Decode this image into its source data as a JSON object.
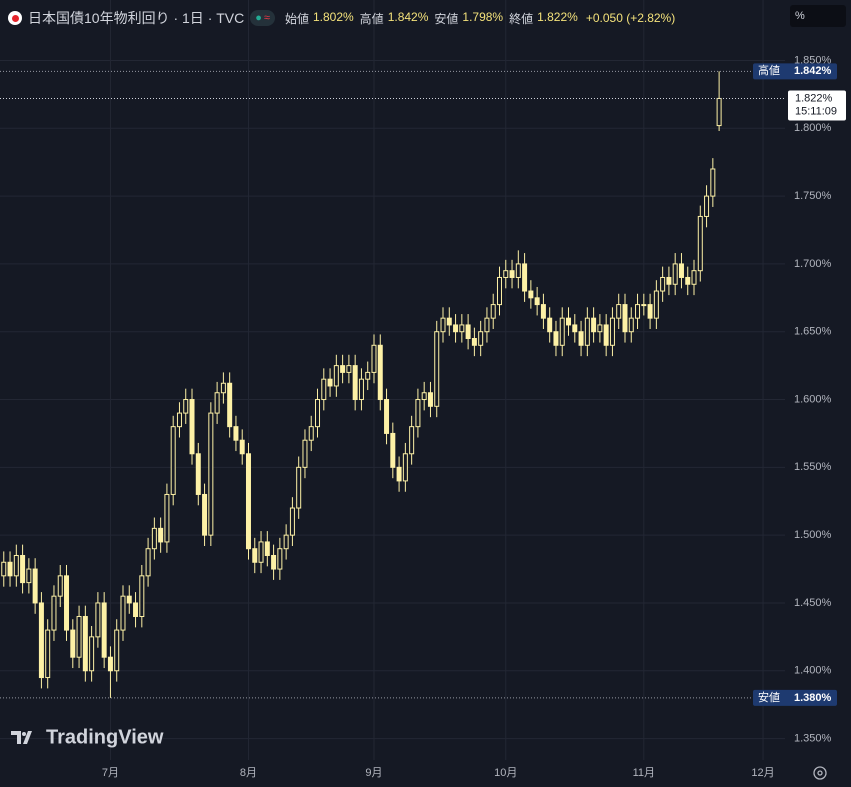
{
  "chart_data": {
    "type": "candlestick",
    "symbol": "日本国債10年物利回り · 1日 · TVC",
    "ohlc_legend": [
      {
        "label": "始値",
        "value": "1.802%"
      },
      {
        "label": "高値",
        "value": "1.842%"
      },
      {
        "label": "安値",
        "value": "1.798%"
      },
      {
        "label": "終値",
        "value": "1.822%"
      }
    ],
    "change": "+0.050 (+2.82%)",
    "unit_box": "%",
    "watermark": "TradingView",
    "color": "#fdf1a6",
    "grid": true,
    "xlim": [
      -0.6,
      124.5
    ],
    "xticks": [
      {
        "value": 17,
        "label": "7月"
      },
      {
        "value": 39,
        "label": "8月"
      },
      {
        "value": 59,
        "label": "9月"
      },
      {
        "value": 80,
        "label": "10月"
      },
      {
        "value": 102,
        "label": "11月"
      },
      {
        "value": 121,
        "label": "12月"
      }
    ],
    "ylim": [
      1.3342,
      1.8946
    ],
    "yticks": [
      {
        "value": 1.35,
        "label": "1.350%"
      },
      {
        "value": 1.4,
        "label": "1.400%"
      },
      {
        "value": 1.45,
        "label": "1.450%"
      },
      {
        "value": 1.5,
        "label": "1.500%"
      },
      {
        "value": 1.55,
        "label": "1.550%"
      },
      {
        "value": 1.6,
        "label": "1.600%"
      },
      {
        "value": 1.65,
        "label": "1.650%"
      },
      {
        "value": 1.7,
        "label": "1.700%"
      },
      {
        "value": 1.75,
        "label": "1.750%"
      },
      {
        "value": 1.8,
        "label": "1.800%"
      },
      {
        "value": 1.85,
        "label": "1.850%"
      }
    ],
    "price_lines": [
      {
        "label": "高値",
        "value": 1.842,
        "value_label": "1.842%"
      },
      {
        "label": "安値",
        "value": 1.38,
        "value_label": "1.380%"
      }
    ],
    "last_price": {
      "value": 1.822,
      "value_label": "1.822%",
      "time": "15:11:09"
    },
    "open": [
      1.47,
      1.48,
      1.47,
      1.485,
      1.465,
      1.475,
      1.45,
      1.395,
      1.43,
      1.455,
      1.47,
      1.43,
      1.41,
      1.44,
      1.4,
      1.425,
      1.45,
      1.41,
      1.4,
      1.43,
      1.455,
      1.45,
      1.44,
      1.47,
      1.49,
      1.505,
      1.495,
      1.53,
      1.58,
      1.59,
      1.6,
      1.56,
      1.53,
      1.5,
      1.59,
      1.605,
      1.612,
      1.58,
      1.57,
      1.56,
      1.49,
      1.48,
      1.495,
      1.485,
      1.475,
      1.49,
      1.5,
      1.52,
      1.55,
      1.57,
      1.58,
      1.6,
      1.615,
      1.61,
      1.625,
      1.62,
      1.625,
      1.6,
      1.615,
      1.62,
      1.64,
      1.6,
      1.575,
      1.55,
      1.54,
      1.56,
      1.58,
      1.6,
      1.605,
      1.595,
      1.65,
      1.66,
      1.655,
      1.65,
      1.655,
      1.645,
      1.64,
      1.65,
      1.66,
      1.67,
      1.69,
      1.695,
      1.69,
      1.7,
      1.68,
      1.675,
      1.67,
      1.66,
      1.65,
      1.64,
      1.66,
      1.655,
      1.65,
      1.64,
      1.66,
      1.65,
      1.655,
      1.64,
      1.66,
      1.67,
      1.65,
      1.66,
      1.67,
      1.67,
      1.66,
      1.68,
      1.69,
      1.685,
      1.7,
      1.69,
      1.685,
      1.695,
      1.735,
      1.75,
      1.802
    ],
    "high": [
      1.488,
      1.488,
      1.493,
      1.493,
      1.483,
      1.483,
      1.458,
      1.438,
      1.463,
      1.478,
      1.478,
      1.438,
      1.448,
      1.448,
      1.433,
      1.458,
      1.458,
      1.418,
      1.438,
      1.463,
      1.463,
      1.458,
      1.478,
      1.498,
      1.513,
      1.513,
      1.538,
      1.588,
      1.598,
      1.608,
      1.608,
      1.568,
      1.538,
      1.598,
      1.613,
      1.62,
      1.62,
      1.588,
      1.578,
      1.568,
      1.498,
      1.503,
      1.503,
      1.493,
      1.498,
      1.508,
      1.528,
      1.558,
      1.578,
      1.588,
      1.608,
      1.623,
      1.623,
      1.633,
      1.633,
      1.633,
      1.633,
      1.623,
      1.628,
      1.648,
      1.648,
      1.608,
      1.583,
      1.558,
      1.568,
      1.588,
      1.608,
      1.613,
      1.613,
      1.658,
      1.668,
      1.668,
      1.663,
      1.663,
      1.663,
      1.653,
      1.658,
      1.668,
      1.678,
      1.698,
      1.703,
      1.703,
      1.71,
      1.708,
      1.688,
      1.683,
      1.678,
      1.668,
      1.658,
      1.668,
      1.668,
      1.663,
      1.658,
      1.668,
      1.668,
      1.663,
      1.663,
      1.668,
      1.678,
      1.678,
      1.668,
      1.678,
      1.678,
      1.678,
      1.688,
      1.698,
      1.698,
      1.708,
      1.708,
      1.698,
      1.703,
      1.743,
      1.758,
      1.778,
      1.842
    ],
    "low": [
      1.462,
      1.462,
      1.462,
      1.457,
      1.457,
      1.442,
      1.387,
      1.387,
      1.422,
      1.447,
      1.422,
      1.402,
      1.402,
      1.392,
      1.392,
      1.417,
      1.402,
      1.38,
      1.392,
      1.422,
      1.442,
      1.432,
      1.432,
      1.462,
      1.482,
      1.487,
      1.487,
      1.522,
      1.572,
      1.582,
      1.552,
      1.522,
      1.492,
      1.492,
      1.582,
      1.597,
      1.572,
      1.562,
      1.552,
      1.482,
      1.472,
      1.472,
      1.477,
      1.467,
      1.467,
      1.482,
      1.492,
      1.512,
      1.542,
      1.562,
      1.572,
      1.592,
      1.602,
      1.602,
      1.612,
      1.612,
      1.592,
      1.592,
      1.607,
      1.612,
      1.592,
      1.567,
      1.542,
      1.532,
      1.532,
      1.552,
      1.572,
      1.592,
      1.587,
      1.587,
      1.642,
      1.647,
      1.642,
      1.642,
      1.637,
      1.632,
      1.632,
      1.642,
      1.652,
      1.662,
      1.682,
      1.682,
      1.682,
      1.672,
      1.667,
      1.662,
      1.652,
      1.642,
      1.632,
      1.632,
      1.647,
      1.642,
      1.632,
      1.632,
      1.642,
      1.642,
      1.632,
      1.632,
      1.652,
      1.642,
      1.642,
      1.652,
      1.662,
      1.652,
      1.652,
      1.672,
      1.677,
      1.677,
      1.682,
      1.677,
      1.677,
      1.687,
      1.727,
      1.742,
      1.798
    ],
    "close": [
      1.48,
      1.47,
      1.485,
      1.465,
      1.475,
      1.45,
      1.395,
      1.43,
      1.455,
      1.47,
      1.43,
      1.41,
      1.44,
      1.4,
      1.425,
      1.45,
      1.41,
      1.4,
      1.43,
      1.455,
      1.45,
      1.44,
      1.47,
      1.49,
      1.505,
      1.495,
      1.53,
      1.58,
      1.59,
      1.6,
      1.56,
      1.53,
      1.5,
      1.59,
      1.605,
      1.612,
      1.58,
      1.57,
      1.56,
      1.49,
      1.48,
      1.495,
      1.485,
      1.475,
      1.49,
      1.5,
      1.52,
      1.55,
      1.57,
      1.58,
      1.6,
      1.615,
      1.61,
      1.625,
      1.62,
      1.625,
      1.6,
      1.615,
      1.62,
      1.64,
      1.6,
      1.575,
      1.55,
      1.54,
      1.56,
      1.58,
      1.6,
      1.605,
      1.595,
      1.65,
      1.66,
      1.655,
      1.65,
      1.655,
      1.645,
      1.64,
      1.65,
      1.66,
      1.67,
      1.69,
      1.695,
      1.69,
      1.7,
      1.68,
      1.675,
      1.67,
      1.66,
      1.65,
      1.64,
      1.66,
      1.655,
      1.65,
      1.64,
      1.66,
      1.65,
      1.655,
      1.64,
      1.66,
      1.67,
      1.65,
      1.66,
      1.67,
      1.67,
      1.66,
      1.68,
      1.69,
      1.685,
      1.7,
      1.69,
      1.685,
      1.695,
      1.735,
      1.75,
      1.77,
      1.822
    ]
  }
}
